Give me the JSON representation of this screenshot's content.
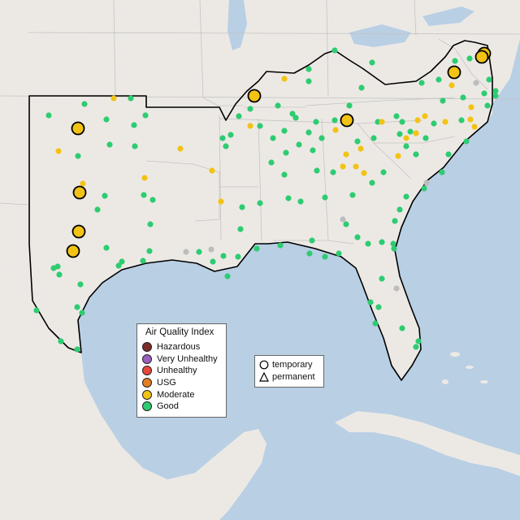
{
  "legend": {
    "title": "Air Quality Index",
    "categories": [
      {
        "label": "Hazardous",
        "color": "#7e2b2b"
      },
      {
        "label": "Very Unhealthy",
        "color": "#9b5fc0"
      },
      {
        "label": "Unhealthy",
        "color": "#e8463a"
      },
      {
        "label": "USG",
        "color": "#e37c22"
      },
      {
        "label": "Moderate",
        "color": "#f2c315"
      },
      {
        "label": "Good",
        "color": "#2ecc71"
      }
    ],
    "gray_color": "#bdbdbd"
  },
  "shape_legend": {
    "temporary": "temporary",
    "permanent": "permanent"
  },
  "map": {
    "land_color": "#ece9e5",
    "water_color": "#b9cfe4",
    "border_color": "#c4c4c4",
    "outline_color": "#000000"
  }
}
